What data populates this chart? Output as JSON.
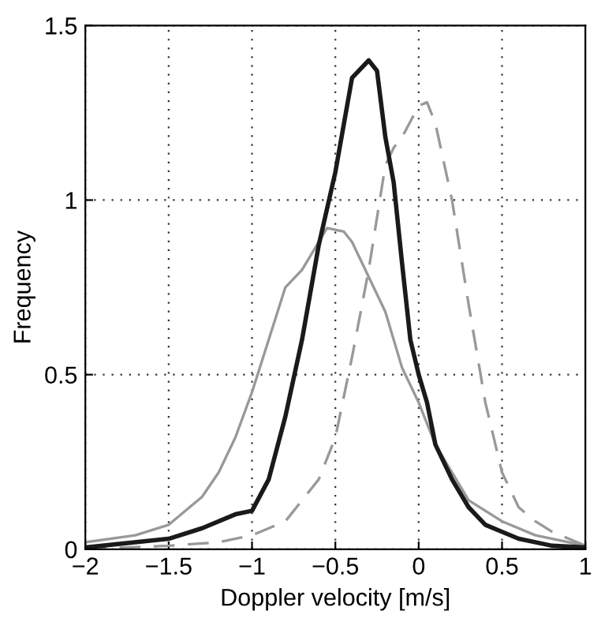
{
  "chart_data": {
    "type": "line",
    "xlabel": "Doppler velocity [m/s]",
    "ylabel": "Frequency",
    "xlim": [
      -2,
      1
    ],
    "ylim": [
      0,
      1.5
    ],
    "xticks": [
      {
        "value": -2,
        "label": "−2"
      },
      {
        "value": -1.5,
        "label": "−1.5"
      },
      {
        "value": -1,
        "label": "−1"
      },
      {
        "value": -0.5,
        "label": "−0.5"
      },
      0,
      0.5,
      1
    ],
    "yticks": [
      0,
      0.5,
      1,
      1.5
    ],
    "grid": true,
    "legend": false,
    "series": [
      {
        "color": "#999999",
        "line_style": "solid",
        "x": [
          -2,
          -1.7,
          -1.5,
          -1.3,
          -1.2,
          -1.1,
          -1,
          -0.9,
          -0.8,
          -0.7,
          -0.6,
          -0.55,
          -0.45,
          -0.4,
          -0.3,
          -0.2,
          -0.1,
          0,
          0.1,
          0.2,
          0.3,
          0.5,
          0.7,
          1
        ],
        "values": [
          0.02,
          0.04,
          0.07,
          0.15,
          0.22,
          0.32,
          0.45,
          0.6,
          0.75,
          0.8,
          0.88,
          0.92,
          0.91,
          0.88,
          0.78,
          0.68,
          0.52,
          0.42,
          0.3,
          0.22,
          0.14,
          0.08,
          0.04,
          0.01
        ]
      },
      {
        "color": "#999999",
        "line_style": "dashed",
        "x": [
          -2,
          -1.5,
          -1.2,
          -1,
          -0.8,
          -0.6,
          -0.5,
          -0.4,
          -0.3,
          -0.2,
          -0.15,
          -0.1,
          0,
          0.05,
          0.1,
          0.2,
          0.3,
          0.4,
          0.5,
          0.6,
          0.7,
          0.8,
          1
        ],
        "values": [
          0,
          0.01,
          0.02,
          0.04,
          0.08,
          0.2,
          0.32,
          0.55,
          0.8,
          1.1,
          1.15,
          1.18,
          1.27,
          1.28,
          1.22,
          1.0,
          0.7,
          0.42,
          0.22,
          0.12,
          0.08,
          0.05,
          0.01
        ]
      },
      {
        "color": "#1a1a1a",
        "line_style": "solid",
        "x": [
          -2,
          -1.5,
          -1.3,
          -1.1,
          -1,
          -0.9,
          -0.8,
          -0.7,
          -0.6,
          -0.5,
          -0.4,
          -0.3,
          -0.25,
          -0.2,
          -0.15,
          -0.1,
          -0.05,
          0,
          0.05,
          0.1,
          0.2,
          0.3,
          0.4,
          0.5,
          0.6,
          0.8,
          1
        ],
        "values": [
          0.005,
          0.03,
          0.06,
          0.1,
          0.11,
          0.2,
          0.38,
          0.6,
          0.87,
          1.08,
          1.35,
          1.4,
          1.37,
          1.18,
          1.05,
          0.82,
          0.6,
          0.5,
          0.42,
          0.3,
          0.2,
          0.12,
          0.07,
          0.05,
          0.03,
          0.01,
          0.005
        ]
      }
    ]
  }
}
